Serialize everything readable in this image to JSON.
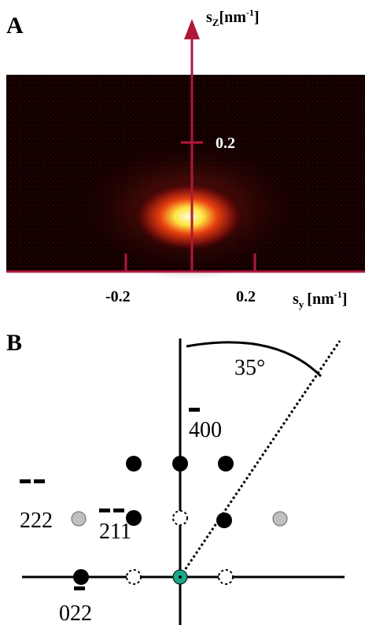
{
  "panel_a": {
    "label": "A",
    "z_axis": {
      "symbol": "s",
      "subscript": "Z",
      "unit": "[nm",
      "exponent": "-1",
      "close": "]"
    },
    "z_tick": "0.2",
    "y_ticks": [
      "-0.2",
      "0.2"
    ],
    "y_axis": {
      "symbol": "s",
      "subscript": "y",
      "unit": "[nm",
      "exponent": "-1",
      "close": "]"
    }
  },
  "panel_b": {
    "label": "B",
    "angle": "35°",
    "indices": [
      "400",
      "222",
      "211",
      "022"
    ]
  }
}
